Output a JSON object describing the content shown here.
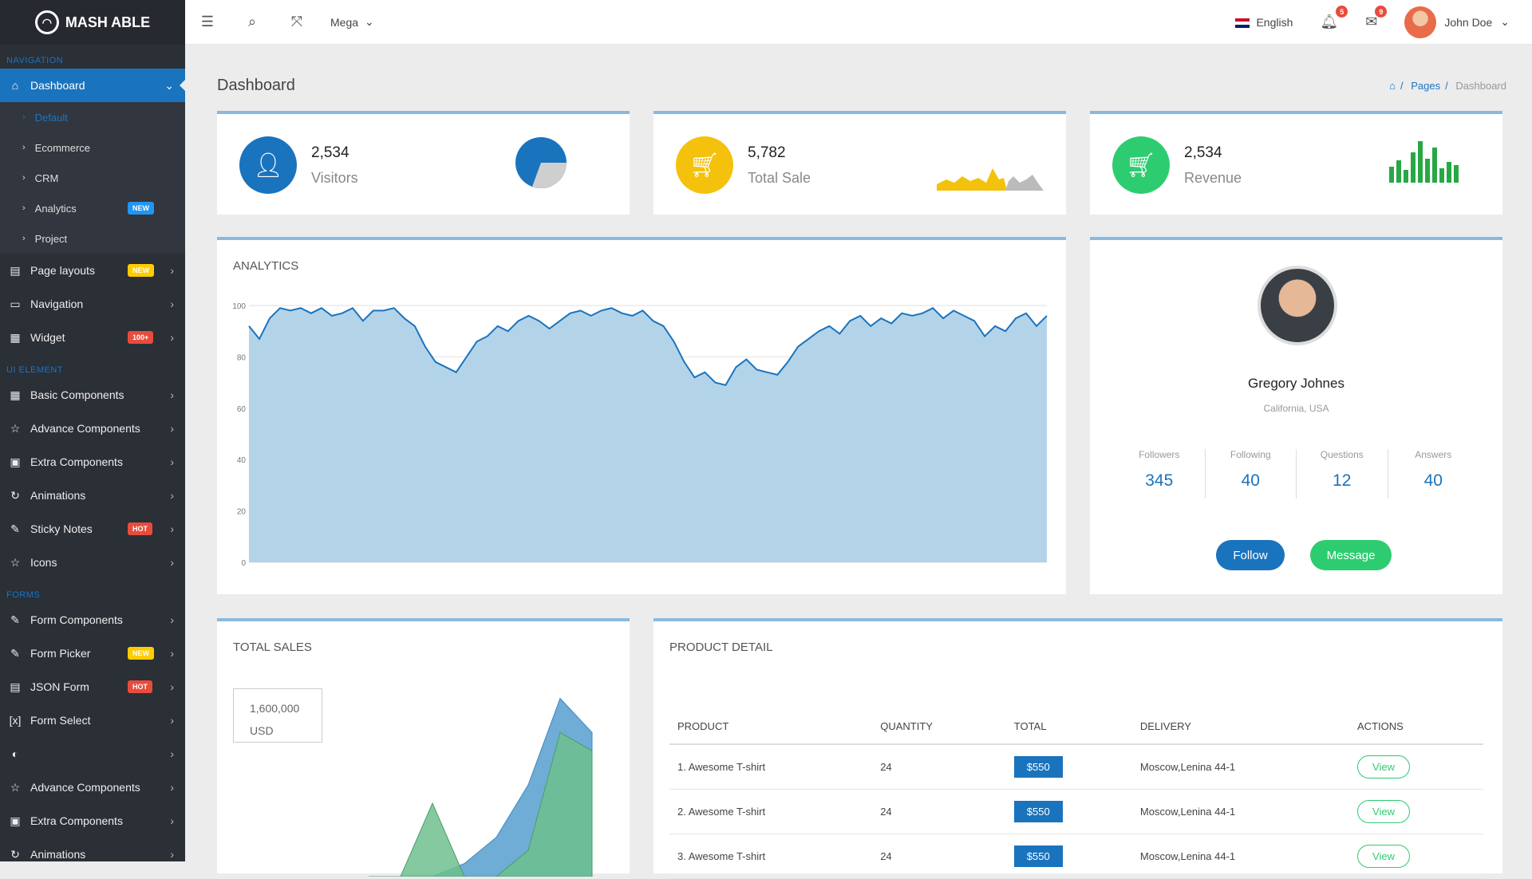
{
  "app": {
    "logo": "MASH ABLE"
  },
  "sidebar": {
    "sections": {
      "navigation": "NAVIGATION",
      "ui_element": "UI ELEMENT",
      "forms": "FORMS"
    },
    "dashboard": "Dashboard",
    "dashboard_sub": [
      "Default",
      "Ecommerce",
      "CRM",
      "Analytics",
      "Project"
    ],
    "analytics_badge": "NEW",
    "items_a": [
      {
        "label": "Page layouts",
        "badge": "NEW",
        "icon": "layout-icon"
      },
      {
        "label": "Navigation",
        "badge": "",
        "icon": "navigation-icon"
      },
      {
        "label": "Widget",
        "badge": "100+",
        "icon": "widget-icon"
      }
    ],
    "items_b": [
      {
        "label": "Basic Components",
        "badge": "",
        "icon": "components-icon"
      },
      {
        "label": "Advance Components",
        "badge": "",
        "icon": "advance-icon"
      },
      {
        "label": "Extra Components",
        "badge": "",
        "icon": "extra-icon"
      },
      {
        "label": "Animations",
        "badge": "",
        "icon": "animation-icon"
      },
      {
        "label": "Sticky Notes",
        "badge": "HOT",
        "icon": "sticky-note-icon"
      },
      {
        "label": "Icons",
        "badge": "",
        "icon": "star-icon"
      }
    ],
    "items_c": [
      {
        "label": "Form Components",
        "badge": "",
        "icon": "form-icon"
      },
      {
        "label": "Form Picker",
        "badge": "NEW",
        "icon": "picker-icon"
      },
      {
        "label": "JSON Form",
        "badge": "HOT",
        "icon": "json-icon"
      },
      {
        "label": "Form Select",
        "badge": "",
        "icon": "select-icon"
      },
      {
        "label": "",
        "badge": "",
        "icon": "form-masking-icon"
      },
      {
        "label": "Advance Components",
        "badge": "",
        "icon": "advance-icon"
      },
      {
        "label": "Extra Components",
        "badge": "",
        "icon": "extra-icon"
      },
      {
        "label": "Animations",
        "badge": "",
        "icon": "animation-icon"
      }
    ]
  },
  "topbar": {
    "mega": "Mega",
    "language": "English",
    "notif1": "5",
    "notif2": "9",
    "user": "John Doe"
  },
  "page": {
    "title": "Dashboard",
    "breadcrumb": [
      "Pages",
      "Dashboard"
    ]
  },
  "stats": [
    {
      "value": "2,534",
      "label": "Visitors",
      "color": "#1a73bd",
      "icon": "user-icon"
    },
    {
      "value": "5,782",
      "label": "Total Sale",
      "color": "#f4c20d",
      "icon": "cart-icon"
    },
    {
      "value": "2,534",
      "label": "Revenue",
      "color": "#2ecc71",
      "icon": "cart-icon"
    }
  ],
  "analytics": {
    "title": "ANALYTICS"
  },
  "profile": {
    "name": "Gregory Johnes",
    "location": "California, USA",
    "stats": [
      {
        "label": "Followers",
        "value": "345"
      },
      {
        "label": "Following",
        "value": "40"
      },
      {
        "label": "Questions",
        "value": "12"
      },
      {
        "label": "Answers",
        "value": "40"
      }
    ],
    "follow": "Follow",
    "message": "Message"
  },
  "total_sales": {
    "title": "TOTAL SALES",
    "amount": "1,600,000",
    "currency": "USD"
  },
  "product": {
    "title": "PRODUCT DETAIL",
    "headers": [
      "PRODUCT",
      "QUANTITY",
      "TOTAL",
      "DELIVERY",
      "ACTIONS"
    ],
    "rows": [
      {
        "product": "1. Awesome T-shirt",
        "qty": "24",
        "total": "$550",
        "delivery": "Moscow,Lenina 44-1",
        "action": "View"
      },
      {
        "product": "2. Awesome T-shirt",
        "qty": "24",
        "total": "$550",
        "delivery": "Moscow,Lenina 44-1",
        "action": "View"
      },
      {
        "product": "3. Awesome T-shirt",
        "qty": "24",
        "total": "$550",
        "delivery": "Moscow,Lenina 44-1",
        "action": "View"
      }
    ]
  },
  "chart_data": [
    {
      "type": "area",
      "title": "ANALYTICS",
      "ylim": [
        0,
        100
      ],
      "yticks": [
        "0",
        "20",
        "40",
        "60",
        "80",
        "100"
      ],
      "series": [
        {
          "values": [
            92,
            87,
            95,
            99,
            98,
            99,
            97,
            99,
            96,
            97,
            99,
            94,
            98,
            98,
            99,
            95,
            92,
            84,
            78,
            76,
            74,
            80,
            86,
            88,
            92,
            90,
            94,
            96,
            94,
            91,
            94,
            97,
            98,
            96,
            98,
            99,
            97,
            96,
            98,
            94,
            92,
            86,
            78,
            72,
            74,
            70,
            69,
            76,
            79,
            75,
            74,
            73,
            78,
            84,
            87,
            90,
            92,
            89,
            94,
            96,
            92,
            95,
            93,
            97,
            96,
            97,
            99,
            95,
            98,
            96,
            94,
            88,
            92,
            90,
            95,
            97,
            92,
            96
          ]
        }
      ]
    },
    {
      "type": "area",
      "title": "TOTAL SALES",
      "series": [
        {
          "name": "",
          "values": [
            0,
            0,
            0,
            5,
            15,
            35,
            68,
            55
          ]
        },
        {
          "name": "",
          "values": [
            0,
            0,
            28,
            0,
            0,
            10,
            55,
            48
          ]
        }
      ]
    }
  ]
}
